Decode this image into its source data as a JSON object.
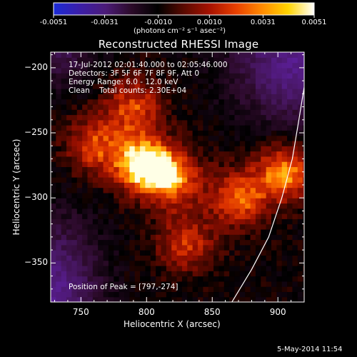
{
  "colorbar": {
    "tick_labels": [
      "-0.0051",
      "-0.0031",
      "-0.0010",
      "0.0010",
      "0.0031",
      "0.0051"
    ],
    "unit_label": "(photons cm⁻² s⁻¹ asec⁻²)",
    "gradient": [
      "#1b2bd6",
      "#3b1ea8",
      "#4b1b78",
      "#2b0a28",
      "#000000",
      "#5a0a00",
      "#a81200",
      "#e84000",
      "#ff8a00",
      "#ffd400",
      "#ffffff"
    ]
  },
  "plot": {
    "title": "Reconstructed RHESSI Image",
    "xlabel": "Heliocentric X (arcsec)",
    "ylabel": "Heliocentric Y (arcsec)",
    "info": {
      "time_range": "17-Jul-2012 02:01:40.000 to 02:05:46.000",
      "detectors": "Detectors: 3F 5F 6F 7F 8F 9F, Att 0",
      "energy": "Energy Range: 6.0 - 12.0 keV",
      "clean": "Clean    Total counts: 2.30E+04"
    },
    "peak_label": "Position of Peak = [797,-274]",
    "x_ticks": [
      "750",
      "800",
      "850",
      "900"
    ],
    "y_ticks": [
      "-200",
      "-250",
      "-300",
      "-350"
    ]
  },
  "footer": {
    "timestamp": "5-May-2014 11:54"
  },
  "chart_data": {
    "type": "heatmap",
    "title": "Reconstructed RHESSI Image",
    "xlabel": "Heliocentric X (arcsec)",
    "ylabel": "Heliocentric Y (arcsec)",
    "xlim": [
      727,
      920
    ],
    "ylim": [
      -380,
      -188
    ],
    "x_ticks": [
      750,
      800,
      850,
      900
    ],
    "y_ticks": [
      -200,
      -250,
      -300,
      -350
    ],
    "colorbar_range": [
      -0.0051,
      0.0051
    ],
    "colorbar_ticks": [
      -0.0051,
      -0.0031,
      -0.001,
      0.001,
      0.0031,
      0.0051
    ],
    "peak": [
      797,
      -274
    ],
    "limb_curve": [
      [
        865,
        -380
      ],
      [
        880,
        -355
      ],
      [
        893,
        -330
      ],
      [
        903,
        -300
      ],
      [
        911,
        -270
      ],
      [
        916,
        -240
      ],
      [
        920,
        -215
      ]
    ],
    "sources": [
      {
        "x": 797,
        "y": -274,
        "intensity": 1.0
      },
      {
        "x": 820,
        "y": -285,
        "intensity": 0.75
      },
      {
        "x": 870,
        "y": -300,
        "intensity": 0.7
      },
      {
        "x": 905,
        "y": -280,
        "intensity": 0.8
      },
      {
        "x": 760,
        "y": -260,
        "intensity": 0.6
      },
      {
        "x": 790,
        "y": -230,
        "intensity": 0.6
      },
      {
        "x": 830,
        "y": -335,
        "intensity": 0.55
      }
    ]
  }
}
